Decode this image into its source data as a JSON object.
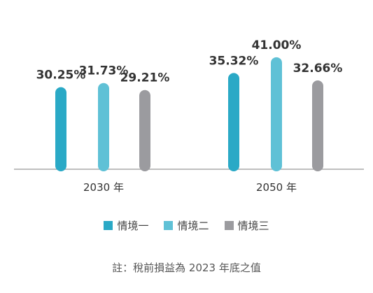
{
  "chart_data": {
    "type": "bar",
    "categories": [
      "2030 年",
      "2050 年"
    ],
    "series": [
      {
        "name": "情境一",
        "color": "#2aa9c6",
        "values": [
          30.25,
          35.32
        ],
        "labels": [
          "30.25%",
          "35.32%"
        ]
      },
      {
        "name": "情境二",
        "color": "#5fc1d6",
        "values": [
          31.73,
          41.0
        ],
        "labels": [
          "31.73%",
          "41.00%"
        ]
      },
      {
        "name": "情境三",
        "color": "#9b9b9f",
        "values": [
          29.21,
          32.66
        ],
        "labels": [
          "29.21%",
          "32.66%"
        ]
      }
    ],
    "ylim": [
      0,
      45
    ],
    "grid": false,
    "legend_position": "bottom",
    "title": "",
    "xlabel": "",
    "ylabel": ""
  },
  "note": "註：稅前損益為 2023 年底之值"
}
